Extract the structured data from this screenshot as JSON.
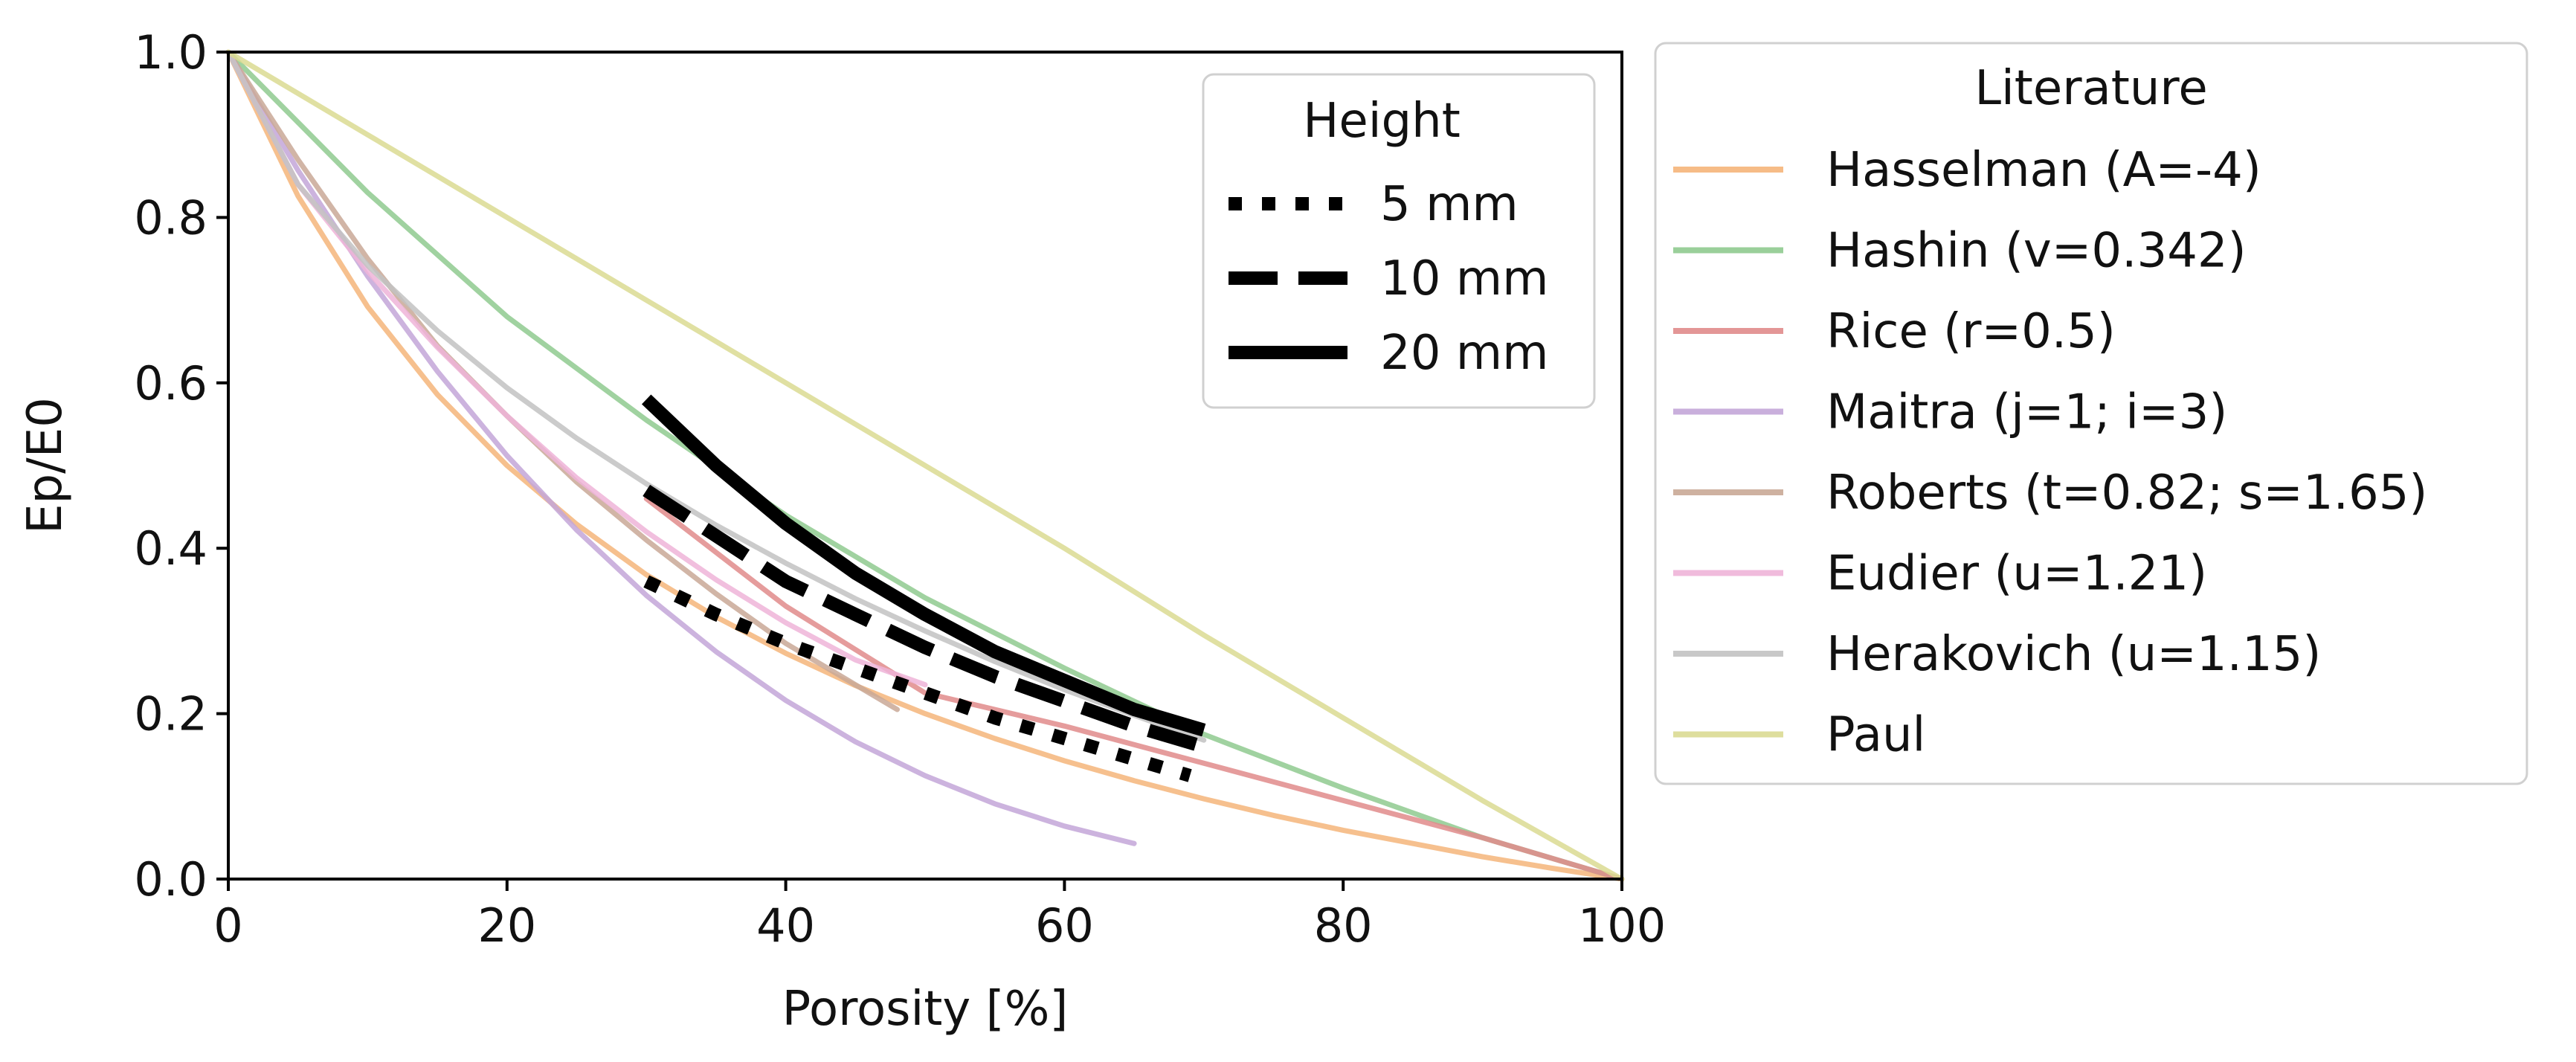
{
  "chart_data": {
    "type": "line",
    "title": "",
    "xlabel": "Porosity [%]",
    "ylabel": "Ep/E0",
    "xlim": [
      0,
      100
    ],
    "ylim": [
      0,
      1.0
    ],
    "xticks": [
      "0",
      "20",
      "40",
      "60",
      "80",
      "100"
    ],
    "yticks": [
      "0.0",
      "0.2",
      "0.4",
      "0.6",
      "0.8",
      "1.0"
    ],
    "grid": false,
    "legends": {
      "height": {
        "title": "Height",
        "placement": "upper-right inside axes",
        "entries": [
          "5 mm",
          "10 mm",
          "20 mm"
        ]
      },
      "literature": {
        "title": "Literature",
        "placement": "outside right",
        "entries": [
          "Hasselman (A=-4)",
          "Hashin (v=0.342)",
          "Rice (r=0.5)",
          "Maitra (j=1; i=3)",
          "Roberts (t=0.82; s=1.65)",
          "Eudier (u=1.21)",
          "Herakovich (u=1.15)",
          "Paul"
        ]
      }
    },
    "series": [
      {
        "name": "Hasselman (A=-4)",
        "group": "literature",
        "color": "#f5b57a",
        "style": "solid",
        "x": [
          0,
          5,
          10,
          15,
          20,
          25,
          30,
          35,
          40,
          45,
          50,
          55,
          60,
          65,
          70,
          75,
          80,
          85,
          90,
          95,
          100
        ],
        "y": [
          1.0,
          0.826,
          0.692,
          0.586,
          0.5,
          0.429,
          0.368,
          0.317,
          0.273,
          0.234,
          0.2,
          0.17,
          0.143,
          0.119,
          0.097,
          0.077,
          0.059,
          0.043,
          0.027,
          0.013,
          0.0
        ]
      },
      {
        "name": "Hashin (v=0.342)",
        "group": "literature",
        "color": "#8fca8f",
        "style": "solid",
        "x": [
          0,
          10,
          20,
          30,
          40,
          50,
          60,
          70,
          80,
          90,
          100
        ],
        "y": [
          1.0,
          0.83,
          0.68,
          0.555,
          0.44,
          0.34,
          0.255,
          0.175,
          0.11,
          0.05,
          0.0
        ]
      },
      {
        "name": "Rice (r=0.5)",
        "group": "literature",
        "color": "#e08b8b",
        "style": "solid",
        "x": [
          30,
          40,
          50,
          60,
          70,
          80,
          90,
          100
        ],
        "y": [
          0.46,
          0.33,
          0.225,
          0.185,
          0.14,
          0.095,
          0.05,
          0.0
        ]
      },
      {
        "name": "Maitra (j=1; i=3)",
        "group": "literature",
        "color": "#c3a6d8",
        "style": "solid",
        "x": [
          0,
          5,
          10,
          15,
          20,
          25,
          30,
          35,
          40,
          45,
          50,
          55,
          60,
          65
        ],
        "y": [
          1.0,
          0.857,
          0.729,
          0.614,
          0.512,
          0.422,
          0.343,
          0.275,
          0.216,
          0.166,
          0.125,
          0.091,
          0.064,
          0.043
        ]
      },
      {
        "name": "Roberts (t=0.82; s=1.65)",
        "group": "literature",
        "color": "#c9a896",
        "style": "solid",
        "x": [
          0,
          5,
          10,
          15,
          20,
          25,
          30,
          35,
          40,
          45,
          48
        ],
        "y": [
          1.0,
          0.87,
          0.75,
          0.645,
          0.56,
          0.48,
          0.41,
          0.345,
          0.285,
          0.235,
          0.205
        ]
      },
      {
        "name": "Eudier (u=1.21)",
        "group": "literature",
        "color": "#eeb4d8",
        "style": "solid",
        "x": [
          0,
          5,
          10,
          15,
          20,
          25,
          30,
          35,
          40,
          45,
          50
        ],
        "y": [
          1.0,
          0.84,
          0.735,
          0.643,
          0.56,
          0.485,
          0.42,
          0.362,
          0.31,
          0.265,
          0.235
        ]
      },
      {
        "name": "Herakovich (u=1.15)",
        "group": "literature",
        "color": "#c2c2c2",
        "style": "solid",
        "x": [
          0,
          5,
          10,
          15,
          20,
          25,
          30,
          35,
          40,
          45,
          50,
          55,
          60,
          65,
          70
        ],
        "y": [
          1.0,
          0.84,
          0.742,
          0.663,
          0.594,
          0.533,
          0.478,
          0.428,
          0.382,
          0.339,
          0.3,
          0.263,
          0.229,
          0.198,
          0.168
        ]
      },
      {
        "name": "Paul",
        "group": "literature",
        "color": "#dada92",
        "style": "solid",
        "x": [
          0,
          10,
          20,
          30,
          40,
          50,
          60,
          70,
          80,
          90,
          100
        ],
        "y": [
          1.0,
          0.9,
          0.8,
          0.7,
          0.6,
          0.5,
          0.4,
          0.295,
          0.195,
          0.095,
          0.0
        ]
      },
      {
        "name": "5 mm",
        "group": "height",
        "color": "#000000",
        "style": "dotted",
        "x": [
          30,
          35,
          40,
          45,
          50,
          55,
          60,
          65,
          69
        ],
        "y": [
          0.36,
          0.32,
          0.285,
          0.255,
          0.225,
          0.195,
          0.17,
          0.145,
          0.125
        ]
      },
      {
        "name": "10 mm",
        "group": "height",
        "color": "#000000",
        "style": "dashed",
        "x": [
          30,
          35,
          40,
          45,
          50,
          55,
          60,
          65,
          70
        ],
        "y": [
          0.47,
          0.415,
          0.36,
          0.32,
          0.28,
          0.245,
          0.215,
          0.185,
          0.16
        ]
      },
      {
        "name": "20 mm",
        "group": "height",
        "color": "#000000",
        "style": "solid",
        "x": [
          30,
          35,
          40,
          45,
          50,
          55,
          60,
          65,
          70
        ],
        "y": [
          0.58,
          0.5,
          0.43,
          0.37,
          0.32,
          0.275,
          0.24,
          0.205,
          0.18
        ]
      }
    ]
  }
}
